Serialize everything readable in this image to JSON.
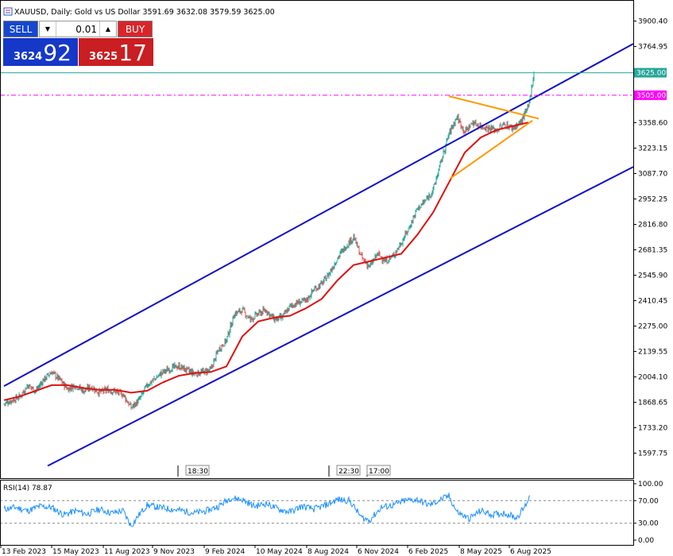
{
  "window": {
    "header": "XAUUSD, Daily:  Gold vs US Dollar  3591.69 3632.08 3579.59 3625.00"
  },
  "trade_panel": {
    "sell_label": "SELL",
    "buy_label": "BUY",
    "lot_value": "0.01",
    "bid_small": "3624",
    "bid_big": "92",
    "ask_small": "3625",
    "ask_big": "17"
  },
  "colors": {
    "bull": "#26a69a",
    "bear": "#ef5350",
    "ma": "#e01010",
    "channel": "#1010c8",
    "triangle": "#ff9900",
    "price_line": "#26a69a",
    "level_line": "#ff00ff",
    "rsi": "#1e90ff"
  },
  "chart_data": [
    {
      "type": "candlestick",
      "title": "XAUUSD, Daily:  Gold vs US Dollar",
      "ohlc_last": {
        "open": 3591.69,
        "high": 3632.08,
        "low": 3579.59,
        "close": 3625.0
      },
      "y_ticks": [
        "3900.40",
        "3764.95",
        "3358.60",
        "3223.15",
        "3087.70",
        "2952.25",
        "2816.80",
        "2681.35",
        "2545.90",
        "2410.45",
        "2275.00",
        "2139.55",
        "2004.10",
        "1868.65",
        "1733.20",
        "1597.75"
      ],
      "ylim": [
        1530,
        3985
      ],
      "x_ticks": [
        "13 Feb 2023",
        "15 May 2023",
        "11 Aug 2023",
        "9 Nov 2023",
        "9 Feb 2024",
        "10 May 2024",
        "8 Aug 2024",
        "6 Nov 2024",
        "6 Feb 2025",
        "8 May 2025",
        "6 Aug 2025"
      ],
      "price_label": "3625.00",
      "level_label": "3505.00",
      "time_labels": [
        "18:30",
        "22:30",
        "17:00"
      ],
      "close_path": [
        [
          0,
          1860
        ],
        [
          20,
          1900
        ],
        [
          30,
          1960
        ],
        [
          40,
          1930
        ],
        [
          50,
          1990
        ],
        [
          60,
          2030
        ],
        [
          70,
          1990
        ],
        [
          80,
          1940
        ],
        [
          90,
          1960
        ],
        [
          100,
          1930
        ],
        [
          110,
          1950
        ],
        [
          120,
          1920
        ],
        [
          130,
          1935
        ],
        [
          140,
          1925
        ],
        [
          150,
          1910
        ],
        [
          160,
          1840
        ],
        [
          170,
          1880
        ],
        [
          180,
          1960
        ],
        [
          190,
          1995
        ],
        [
          200,
          2030
        ],
        [
          210,
          2050
        ],
        [
          220,
          2060
        ],
        [
          230,
          2040
        ],
        [
          240,
          2020
        ],
        [
          250,
          2030
        ],
        [
          260,
          2040
        ],
        [
          270,
          2150
        ],
        [
          280,
          2200
        ],
        [
          290,
          2340
        ],
        [
          300,
          2360
        ],
        [
          310,
          2310
        ],
        [
          320,
          2340
        ],
        [
          330,
          2360
        ],
        [
          340,
          2310
        ],
        [
          350,
          2320
        ],
        [
          360,
          2380
        ],
        [
          370,
          2400
        ],
        [
          380,
          2410
        ],
        [
          390,
          2470
        ],
        [
          400,
          2500
        ],
        [
          410,
          2560
        ],
        [
          420,
          2640
        ],
        [
          430,
          2700
        ],
        [
          440,
          2750
        ],
        [
          450,
          2640
        ],
        [
          460,
          2590
        ],
        [
          470,
          2660
        ],
        [
          480,
          2620
        ],
        [
          490,
          2650
        ],
        [
          500,
          2720
        ],
        [
          510,
          2800
        ],
        [
          520,
          2900
        ],
        [
          530,
          2940
        ],
        [
          540,
          3000
        ],
        [
          550,
          3150
        ],
        [
          560,
          3300
        ],
        [
          570,
          3390
        ],
        [
          580,
          3310
        ],
        [
          590,
          3360
        ],
        [
          600,
          3340
        ],
        [
          610,
          3330
        ],
        [
          620,
          3320
        ],
        [
          630,
          3350
        ],
        [
          640,
          3330
        ],
        [
          650,
          3360
        ],
        [
          660,
          3440
        ],
        [
          667,
          3625
        ]
      ],
      "ma_path": [
        [
          0,
          1880
        ],
        [
          20,
          1900
        ],
        [
          40,
          1930
        ],
        [
          60,
          1960
        ],
        [
          80,
          1960
        ],
        [
          100,
          1945
        ],
        [
          120,
          1935
        ],
        [
          140,
          1935
        ],
        [
          160,
          1920
        ],
        [
          180,
          1930
        ],
        [
          200,
          1975
        ],
        [
          220,
          2010
        ],
        [
          240,
          2025
        ],
        [
          260,
          2030
        ],
        [
          280,
          2060
        ],
        [
          300,
          2220
        ],
        [
          320,
          2300
        ],
        [
          340,
          2320
        ],
        [
          360,
          2330
        ],
        [
          380,
          2370
        ],
        [
          400,
          2420
        ],
        [
          420,
          2520
        ],
        [
          440,
          2600
        ],
        [
          460,
          2620
        ],
        [
          480,
          2640
        ],
        [
          500,
          2660
        ],
        [
          520,
          2760
        ],
        [
          540,
          2880
        ],
        [
          560,
          3040
        ],
        [
          580,
          3200
        ],
        [
          600,
          3280
        ],
        [
          620,
          3320
        ],
        [
          640,
          3340
        ],
        [
          660,
          3360
        ]
      ]
    },
    {
      "type": "line",
      "title": "RSI(14) 78.87",
      "y_ticks": [
        "100.00",
        "70.00",
        "30.00",
        "0.00"
      ],
      "ylim": [
        0,
        100
      ],
      "levels": [
        70,
        30
      ],
      "values": [
        [
          0,
          55
        ],
        [
          15,
          58
        ],
        [
          30,
          52
        ],
        [
          45,
          60
        ],
        [
          60,
          58
        ],
        [
          75,
          45
        ],
        [
          90,
          52
        ],
        [
          105,
          46
        ],
        [
          120,
          55
        ],
        [
          135,
          48
        ],
        [
          150,
          52
        ],
        [
          160,
          25
        ],
        [
          170,
          45
        ],
        [
          180,
          62
        ],
        [
          195,
          58
        ],
        [
          210,
          55
        ],
        [
          225,
          52
        ],
        [
          240,
          48
        ],
        [
          255,
          52
        ],
        [
          270,
          60
        ],
        [
          285,
          75
        ],
        [
          300,
          72
        ],
        [
          315,
          60
        ],
        [
          330,
          65
        ],
        [
          345,
          55
        ],
        [
          360,
          50
        ],
        [
          375,
          60
        ],
        [
          390,
          55
        ],
        [
          405,
          62
        ],
        [
          420,
          72
        ],
        [
          435,
          70
        ],
        [
          450,
          40
        ],
        [
          460,
          35
        ],
        [
          475,
          58
        ],
        [
          490,
          62
        ],
        [
          505,
          70
        ],
        [
          520,
          72
        ],
        [
          535,
          62
        ],
        [
          550,
          72
        ],
        [
          560,
          78
        ],
        [
          570,
          50
        ],
        [
          585,
          38
        ],
        [
          600,
          52
        ],
        [
          615,
          45
        ],
        [
          630,
          48
        ],
        [
          645,
          40
        ],
        [
          655,
          58
        ],
        [
          662,
          78.87
        ]
      ]
    }
  ]
}
